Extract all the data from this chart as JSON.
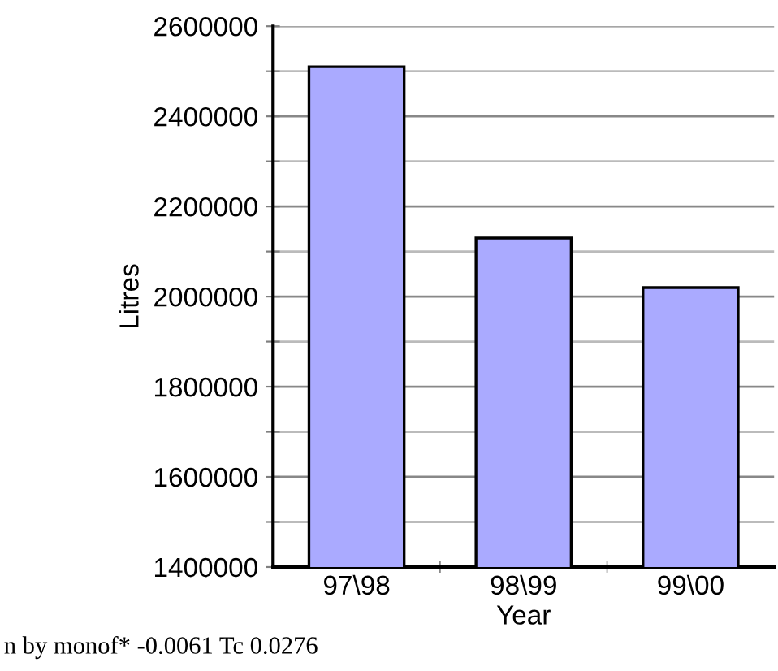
{
  "chart_data": {
    "type": "bar",
    "xlabel": "Year",
    "ylabel": "Litres",
    "categories": [
      "97\\98",
      "98\\99",
      "99\\00"
    ],
    "values": [
      2510000,
      2130000,
      2020000
    ],
    "color": "#aaaaff",
    "ylim": [
      1400000,
      2600000
    ],
    "yticks": [
      1400000,
      {
        "value": 1500000,
        "label": null
      },
      1600000,
      {
        "value": 1700000,
        "label": null
      },
      1800000,
      {
        "value": 1900000,
        "label": null
      },
      2000000,
      {
        "value": 2100000,
        "label": null
      },
      2200000,
      {
        "value": 2300000,
        "label": null
      },
      2400000,
      {
        "value": 2500000,
        "label": null
      },
      2600000
    ],
    "grid": "y",
    "annotations": [
      "n by monof* -0.0061 Tc 0.0276"
    ]
  }
}
